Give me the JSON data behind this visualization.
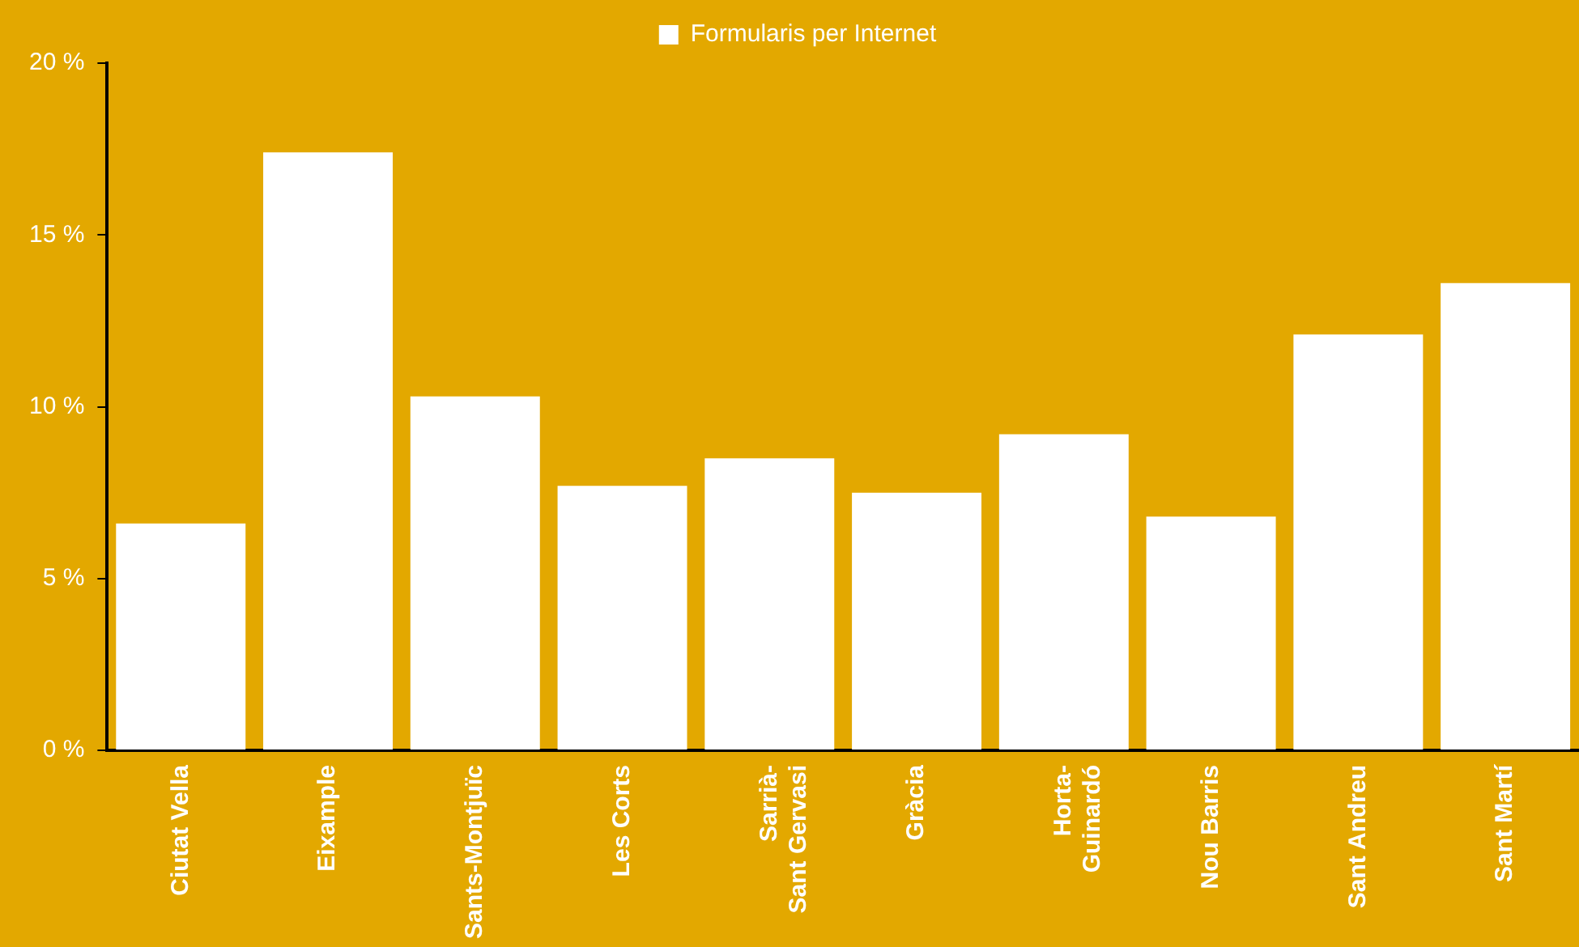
{
  "chart_data": {
    "type": "bar",
    "categories": [
      "Ciutat Vella",
      "Eixample",
      "Sants-Montjuïc",
      "Les Corts",
      "Sarrià-\nSant Gervasi",
      "Gràcia",
      "Horta-\nGuinardó",
      "Nou Barris",
      "Sant Andreu",
      "Sant Martí"
    ],
    "series": [
      {
        "name": "Formularis per Internet",
        "color": "#ffffff",
        "values": [
          6.6,
          17.4,
          10.3,
          7.7,
          8.5,
          7.5,
          9.2,
          6.8,
          12.1,
          13.6
        ]
      }
    ],
    "ylim": [
      0,
      20
    ],
    "yticks": [
      {
        "value": 0,
        "label": "0 %"
      },
      {
        "value": 5,
        "label": "5 %"
      },
      {
        "value": 10,
        "label": "10 %"
      },
      {
        "value": 15,
        "label": "15 %"
      },
      {
        "value": 20,
        "label": "20 %"
      }
    ],
    "grid": false,
    "legend": "top"
  }
}
